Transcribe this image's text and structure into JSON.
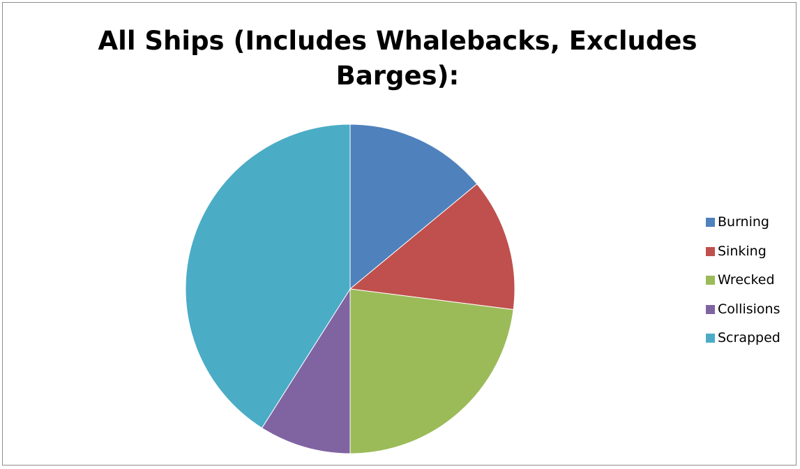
{
  "chart_data": {
    "type": "pie",
    "title": "All Ships (Includes Whalebacks, Excludes Barges):",
    "legend_position": "right",
    "slices": [
      {
        "label": "Burning",
        "value": 14,
        "color": "#4F81BD"
      },
      {
        "label": "Sinking",
        "value": 13,
        "color": "#C0504D"
      },
      {
        "label": "Wrecked",
        "value": 23,
        "color": "#9BBB59"
      },
      {
        "label": "Collisions",
        "value": 9,
        "color": "#8064A2"
      },
      {
        "label": "Scrapped",
        "value": 41,
        "color": "#4BACC6"
      }
    ]
  }
}
